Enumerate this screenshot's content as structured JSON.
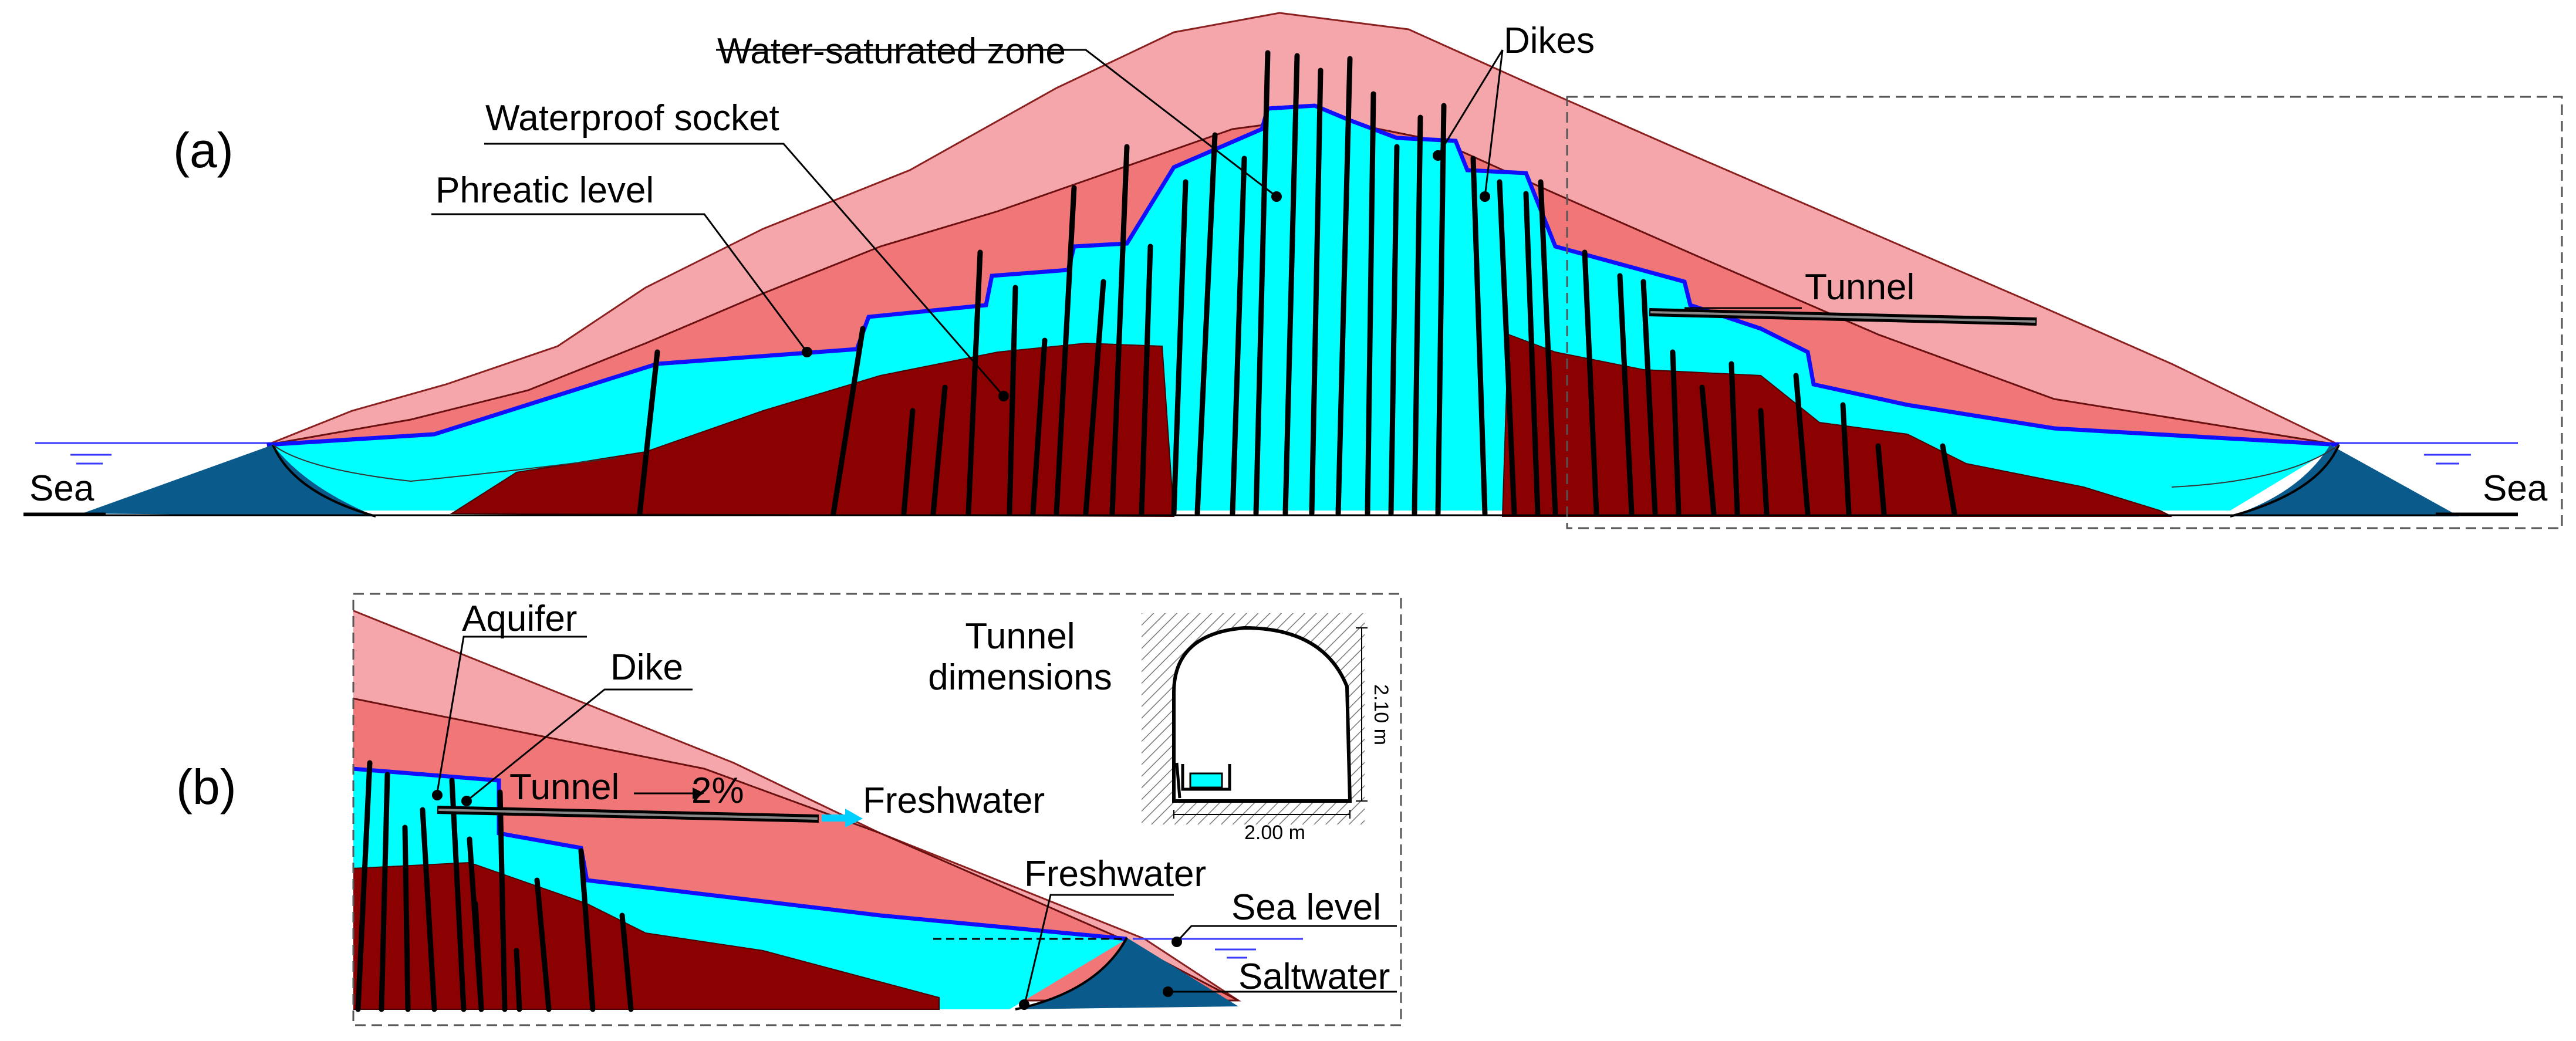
{
  "panel_a": {
    "panel_label": "(a)",
    "labels": {
      "water_saturated_zone": "Water-saturated zone",
      "waterproof_socket": "Waterproof socket",
      "phreatic_level": "Phreatic level",
      "dikes": "Dikes",
      "tunnel": "Tunnel",
      "sea_left": "Sea",
      "sea_right": "Sea"
    }
  },
  "panel_b": {
    "panel_label": "(b)",
    "labels": {
      "aquifer": "Aquifer",
      "dike": "Dike",
      "tunnel": "Tunnel",
      "slope": "2%",
      "freshwater_outflow": "Freshwater",
      "freshwater_lens": "Freshwater",
      "sea_level": "Sea level",
      "saltwater": "Saltwater"
    },
    "tunnel_dimensions": {
      "title_line1": "Tunnel",
      "title_line2": "dimensions",
      "height": "2.10 m",
      "width": "2.00 m"
    }
  },
  "colors": {
    "upper_layer": "#f4a6aa",
    "middle_layer": "#f07678",
    "socket": "#8b0000",
    "aquifer_water": "#00ffff",
    "saltwater": "#0a5a8c",
    "phreatic_line": "#1010ff",
    "dike": "#000000",
    "sea_line": "#3a3aff",
    "outflow_arrow": "#00cfff"
  }
}
